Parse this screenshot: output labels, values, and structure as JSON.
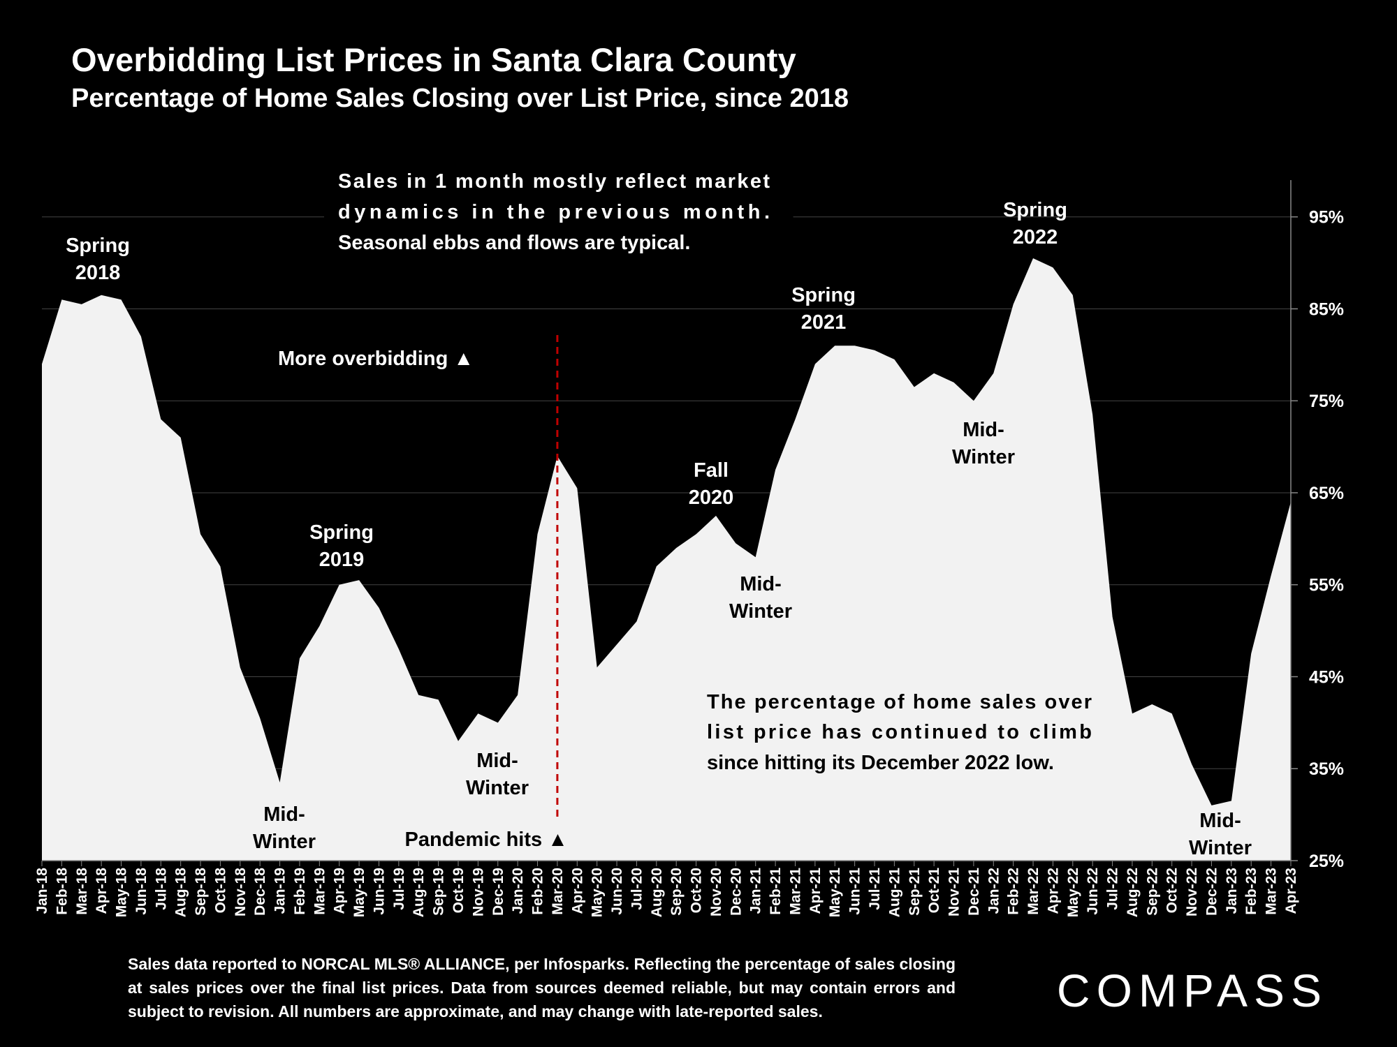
{
  "chart_data": {
    "type": "area",
    "title": "Overbidding List Prices in Santa Clara County",
    "subtitle": "Percentage of Home Sales Closing over List Price, since 2018",
    "categories": [
      "Jan-18",
      "Feb-18",
      "Mar-18",
      "Apr-18",
      "May-18",
      "Jun-18",
      "Jul-18",
      "Aug-18",
      "Sep-18",
      "Oct-18",
      "Nov-18",
      "Dec-18",
      "Jan-19",
      "Feb-19",
      "Mar-19",
      "Apr-19",
      "May-19",
      "Jun-19",
      "Jul-19",
      "Aug-19",
      "Sep-19",
      "Oct-19",
      "Nov-19",
      "Dec-19",
      "Jan-20",
      "Feb-20",
      "Mar-20",
      "Apr-20",
      "May-20",
      "Jun-20",
      "Jul-20",
      "Aug-20",
      "Sep-20",
      "Oct-20",
      "Nov-20",
      "Dec-20",
      "Jan-21",
      "Feb-21",
      "Mar-21",
      "Apr-21",
      "May-21",
      "Jun-21",
      "Jul-21",
      "Aug-21",
      "Sep-21",
      "Oct-21",
      "Nov-21",
      "Dec-21",
      "Jan-22",
      "Feb-22",
      "Mar-22",
      "Apr-22",
      "May-22",
      "Jun-22",
      "Jul-22",
      "Aug-22",
      "Sep-22",
      "Oct-22",
      "Nov-22",
      "Dec-22",
      "Jan-23",
      "Feb-23",
      "Mar-23",
      "Apr-23"
    ],
    "values": [
      79,
      86,
      85.5,
      86.5,
      86,
      82,
      73,
      71,
      60.5,
      57,
      46,
      40.5,
      33.5,
      47,
      50.5,
      55,
      55.5,
      52.5,
      48,
      43,
      42.5,
      38,
      41,
      40,
      43,
      60.5,
      69,
      65.5,
      46,
      48.5,
      51,
      57,
      59,
      60.5,
      62.5,
      59.5,
      58,
      67.5,
      73,
      79,
      81,
      81,
      80.5,
      79.5,
      76.5,
      78,
      77,
      75,
      78,
      85.5,
      90.5,
      89.5,
      86.5,
      73.5,
      51.5,
      41,
      42,
      41,
      35.5,
      31,
      31.5,
      47.5,
      56,
      64
    ],
    "ylim": [
      25,
      99
    ],
    "yticks": [
      "95%",
      "85%",
      "75%",
      "65%",
      "55%",
      "45%",
      "35%",
      "25%"
    ],
    "ytick_values": [
      95,
      85,
      75,
      65,
      55,
      45,
      35,
      25
    ],
    "grid": true,
    "legend": "none",
    "colors": {
      "background": "#000000",
      "area": "#f2f2f2",
      "grid": "#444444",
      "pandemic_line": "#c00000"
    },
    "event_marker": {
      "category": "Mar-20",
      "label": "Pandemic hits ▲"
    },
    "annotations": [
      {
        "lines": [
          "Spring",
          "2018"
        ],
        "anchor": "Apr-18"
      },
      {
        "lines": [
          "Mid-",
          "Winter"
        ],
        "anchor": "Jan-19"
      },
      {
        "lines": [
          "Spring",
          "2019"
        ],
        "anchor": "Apr-19"
      },
      {
        "lines": [
          "Mid-",
          "Winter"
        ],
        "anchor": "Dec-19"
      },
      {
        "lines": [
          "Fall",
          "2020"
        ],
        "anchor": "Oct-20"
      },
      {
        "lines": [
          "Mid-",
          "Winter"
        ],
        "anchor": "Jan-21"
      },
      {
        "lines": [
          "Spring",
          "2021"
        ],
        "anchor": "May-21"
      },
      {
        "lines": [
          "Mid-",
          "Winter"
        ],
        "anchor": "Jan-22"
      },
      {
        "lines": [
          "Spring",
          "2022"
        ],
        "anchor": "Mar-22"
      },
      {
        "lines": [
          "Mid-",
          "Winter"
        ],
        "anchor": "Jan-23"
      }
    ],
    "note_top": [
      "Sales in 1 month mostly reflect market",
      "dynamics in the previous month.",
      "Seasonal ebbs and flows are typical."
    ],
    "more_overbidding": "More overbidding ▲",
    "note_bottom": [
      "The percentage of home sales over",
      "list price has continued to climb",
      "since hitting its December 2022 low."
    ]
  },
  "footnote": "Sales data reported to NORCAL MLS® ALLIANCE, per Infosparks. Reflecting the percentage of sales closing at sales prices over the final list prices. Data from sources deemed reliable, but may contain errors and subject to revision. All numbers are approximate, and may change with late-reported sales.",
  "logo": {
    "text": "COMPASS"
  }
}
